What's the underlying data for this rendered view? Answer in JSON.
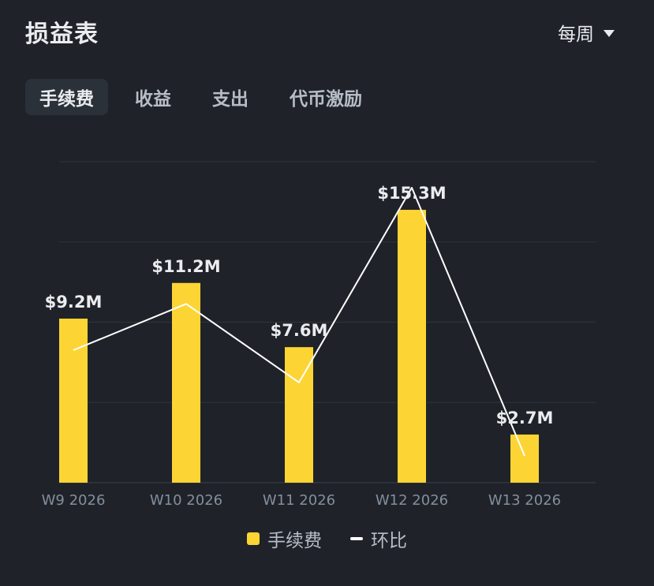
{
  "header": {
    "title": "损益表",
    "period_label": "每周"
  },
  "tabs": [
    {
      "label": "手续费",
      "active": true
    },
    {
      "label": "收益",
      "active": false
    },
    {
      "label": "支出",
      "active": false
    },
    {
      "label": "代币激励",
      "active": false
    }
  ],
  "legend": {
    "bar_label": "手续费",
    "line_label": "环比"
  },
  "colors": {
    "bar": "#FCD535",
    "line": "#FFFFFF",
    "background": "#1F2329"
  },
  "chart_data": {
    "type": "bar",
    "categories": [
      "W9 2026",
      "W10 2026",
      "W11 2026",
      "W12 2026",
      "W13 2026"
    ],
    "series": [
      {
        "name": "手续费",
        "type": "bar",
        "values": [
          9.2,
          11.2,
          7.6,
          15.3,
          2.7
        ],
        "data_labels": [
          "$9.2M",
          "$11.2M",
          "$7.6M",
          "$15.3M",
          "$2.7M"
        ]
      },
      {
        "name": "环比",
        "type": "line",
        "values": [
          -10,
          21.7,
          -32.1,
          101.3,
          -82.4
        ]
      }
    ],
    "ylim": [
      0,
      18
    ],
    "grid": true,
    "legend_position": "bottom-center"
  }
}
